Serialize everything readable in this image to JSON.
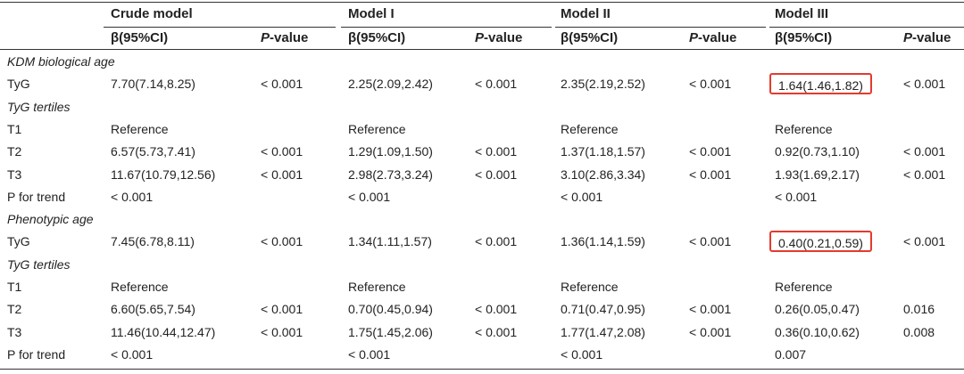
{
  "headers": {
    "models": [
      "Crude model",
      "Model I",
      "Model II",
      "Model III"
    ],
    "beta_label": "β(95%CI)",
    "p_italic": "P",
    "p_rest": "-value"
  },
  "highlight_color": "#e43a2f",
  "rows": [
    {
      "type": "group",
      "label": "KDM biological age"
    },
    {
      "type": "data",
      "label": "TyG",
      "cells": [
        "7.70(7.14,8.25)",
        "< 0.001",
        "2.25(2.09,2.42)",
        "< 0.001",
        "2.35(2.19,2.52)",
        "< 0.001",
        "1.64(1.46,1.82)",
        "< 0.001"
      ],
      "highlight": [
        6
      ]
    },
    {
      "type": "group",
      "label": "TyG tertiles"
    },
    {
      "type": "data",
      "label": "T1",
      "cells": [
        "Reference",
        "",
        "Reference",
        "",
        "Reference",
        "",
        "Reference",
        ""
      ],
      "highlight": []
    },
    {
      "type": "data",
      "label": "T2",
      "cells": [
        "6.57(5.73,7.41)",
        "< 0.001",
        "1.29(1.09,1.50)",
        "< 0.001",
        "1.37(1.18,1.57)",
        "< 0.001",
        "0.92(0.73,1.10)",
        "< 0.001"
      ],
      "highlight": []
    },
    {
      "type": "data",
      "label": "T3",
      "cells": [
        "11.67(10.79,12.56)",
        "< 0.001",
        "2.98(2.73,3.24)",
        "< 0.001",
        "3.10(2.86,3.34)",
        "< 0.001",
        "1.93(1.69,2.17)",
        "< 0.001"
      ],
      "highlight": []
    },
    {
      "type": "data",
      "label": "P for trend",
      "cells": [
        "< 0.001",
        "",
        "< 0.001",
        "",
        "< 0.001",
        "",
        "< 0.001",
        ""
      ],
      "highlight": []
    },
    {
      "type": "group",
      "label": "Phenotypic age"
    },
    {
      "type": "data",
      "label": "TyG",
      "cells": [
        "7.45(6.78,8.11)",
        "< 0.001",
        "1.34(1.11,1.57)",
        "< 0.001",
        "1.36(1.14,1.59)",
        "< 0.001",
        "0.40(0.21,0.59)",
        "< 0.001"
      ],
      "highlight": [
        6
      ]
    },
    {
      "type": "group",
      "label": "TyG tertiles"
    },
    {
      "type": "data",
      "label": "T1",
      "cells": [
        "Reference",
        "",
        "Reference",
        "",
        "Reference",
        "",
        "Reference",
        ""
      ],
      "highlight": []
    },
    {
      "type": "data",
      "label": "T2",
      "cells": [
        "6.60(5.65,7.54)",
        "< 0.001",
        "0.70(0.45,0.94)",
        "< 0.001",
        "0.71(0.47,0.95)",
        "< 0.001",
        "0.26(0.05,0.47)",
        "0.016"
      ],
      "highlight": []
    },
    {
      "type": "data",
      "label": "T3",
      "cells": [
        "11.46(10.44,12.47)",
        "< 0.001",
        "1.75(1.45,2.06)",
        "< 0.001",
        "1.77(1.47,2.08)",
        "< 0.001",
        "0.36(0.10,0.62)",
        "0.008"
      ],
      "highlight": []
    },
    {
      "type": "data",
      "label": "P for trend",
      "cells": [
        "< 0.001",
        "",
        "< 0.001",
        "",
        "< 0.001",
        "",
        "0.007",
        ""
      ],
      "highlight": []
    }
  ]
}
